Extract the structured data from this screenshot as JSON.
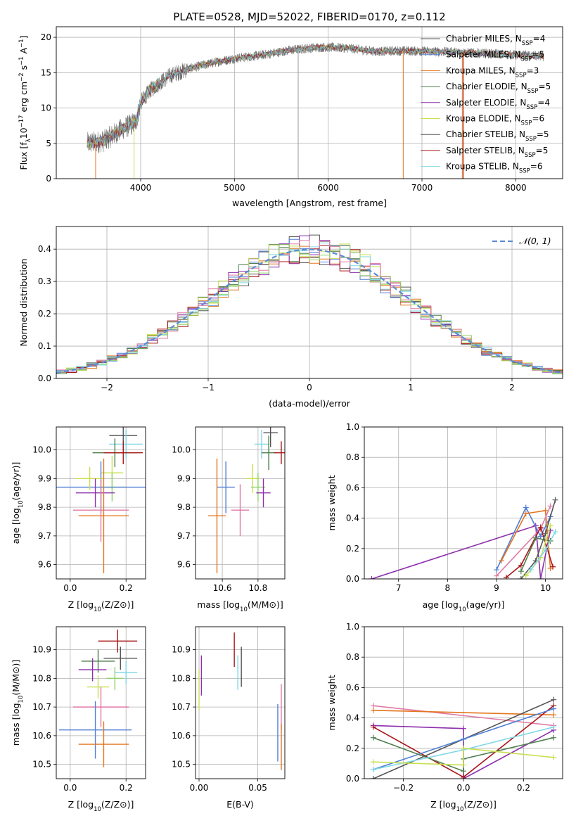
{
  "title": "PLATE=0528, MJD=52022, FIBERID=0170, z=0.112",
  "colors": {
    "blue": "#4f7fd6",
    "orange": "#e4751e",
    "green": "#4e7e4e",
    "purple": "#8d2fae",
    "lime": "#c8e052",
    "gray": "#555555",
    "red": "#a81618",
    "cyan": "#7fd8e6",
    "pink": "#e07aa6",
    "lightgreen": "#8ed36a",
    "darkpurple": "#5a2d8a",
    "olive": "#9aa34a"
  },
  "chart_data": [
    {
      "id": "spectrum",
      "type": "line",
      "xlabel": "wavelength [Angstrom, rest frame]",
      "ylabel_parts": [
        "Flux [f",
        "λ",
        "10",
        "−17",
        " erg cm",
        "−2",
        " s",
        "−1",
        " A",
        "−1",
        "]"
      ],
      "xlim": [
        3100,
        8500
      ],
      "ylim": [
        0,
        21.5
      ],
      "xticks": [
        4000,
        5000,
        6000,
        7000,
        8000
      ],
      "yticks": [
        0,
        5,
        10,
        15,
        20
      ],
      "continuum": {
        "x": [
          3430,
          3600,
          3800,
          3950,
          4000,
          4100,
          4300,
          4500,
          4800,
          5000,
          5300,
          5600,
          5900,
          6200,
          6500,
          6800,
          7100,
          7400,
          7700,
          8000,
          8300
        ],
        "y": [
          5.0,
          5.3,
          7.0,
          8.0,
          10.8,
          12.5,
          14.5,
          15.5,
          16.5,
          17.0,
          17.5,
          18.2,
          18.6,
          18.5,
          18.0,
          18.1,
          18.0,
          17.9,
          17.7,
          17.5,
          17.3
        ]
      },
      "legend_position": "right",
      "legend": [
        {
          "name": "Chabrier MILES",
          "nssp": "4",
          "color": "#555555"
        },
        {
          "name": "Salpeter MILES",
          "nssp": "5",
          "color": "#4f7fd6"
        },
        {
          "name": "Kroupa MILES",
          "nssp": "3",
          "color": "#e4751e"
        },
        {
          "name": "Chabrier ELODIE",
          "nssp": "5",
          "color": "#4e7e4e"
        },
        {
          "name": "Salpeter ELODIE",
          "nssp": "4",
          "color": "#8d2fae"
        },
        {
          "name": "Kroupa ELODIE",
          "nssp": "6",
          "color": "#c8e052"
        },
        {
          "name": "Chabrier STELIB",
          "nssp": "5",
          "color": "#555555"
        },
        {
          "name": "Salpeter STELIB",
          "nssp": "5",
          "color": "#a81618"
        },
        {
          "name": "Kroupa STELIB",
          "nssp": "6",
          "color": "#7fd8e6"
        }
      ]
    },
    {
      "id": "residuals",
      "type": "histogram",
      "xlabel": "(data-model)/error",
      "ylabel": "Normed distribution",
      "xlim": [
        -2.5,
        2.5
      ],
      "ylim": [
        0,
        0.47
      ],
      "xticks": [
        -2,
        -1,
        0,
        1,
        2
      ],
      "yticks": [
        0.0,
        0.1,
        0.2,
        0.3,
        0.4
      ],
      "bin_width": 0.1,
      "legend": "𝒩(0, 1)",
      "legend_position": "top-right",
      "gaussian": {
        "mean": 0,
        "sigma": 1,
        "color": "#5b8bd6"
      }
    },
    {
      "id": "age_vs_Z",
      "type": "errorbar",
      "xlabel": "Z [log10(Z/Z⊙)]",
      "ylabel": "age [log10(age/yr)]",
      "xlim": [
        -0.05,
        0.27
      ],
      "ylim": [
        9.55,
        10.08
      ],
      "xticks": [
        0.0,
        0.2
      ],
      "yticks": [
        9.6,
        9.7,
        9.8,
        9.9,
        10.0
      ],
      "points": [
        {
          "color": "#555555",
          "x": 0.19,
          "xerr": 0.05,
          "y": 10.05,
          "yerr": 0.05
        },
        {
          "color": "#7fd8e6",
          "x": 0.2,
          "xerr": 0.06,
          "y": 10.02,
          "yerr": 0.05
        },
        {
          "color": "#4e7e4e",
          "x": 0.16,
          "xerr": 0.08,
          "y": 9.99,
          "yerr": 0.05
        },
        {
          "color": "#a81618",
          "x": 0.19,
          "xerr": 0.07,
          "y": 9.99,
          "yerr": 0.04
        },
        {
          "color": "#c8e052",
          "x": 0.15,
          "xerr": 0.04,
          "y": 9.92,
          "yerr": 0.06
        },
        {
          "color": "#8ed36a",
          "x": 0.15,
          "xerr": 0.05,
          "y": 9.87,
          "yerr": 0.05
        },
        {
          "color": "#4f7fd6",
          "x": 0.11,
          "xerr": 0.18,
          "y": 9.87,
          "yerr": 0.09
        },
        {
          "color": "#c8e052",
          "x": 0.07,
          "xerr": 0.05,
          "y": 9.9,
          "yerr": 0.04
        },
        {
          "color": "#8d2fae",
          "x": 0.09,
          "xerr": 0.07,
          "y": 9.85,
          "yerr": 0.05
        },
        {
          "color": "#e07aa6",
          "x": 0.11,
          "xerr": 0.1,
          "y": 9.79,
          "yerr": 0.11
        },
        {
          "color": "#e4751e",
          "x": 0.12,
          "xerr": 0.09,
          "y": 9.77,
          "yerr": 0.2
        }
      ]
    },
    {
      "id": "age_vs_mass",
      "type": "errorbar",
      "xlabel": "mass [log10(M/M⊙)]",
      "ylabel": "",
      "xlim": [
        10.45,
        10.95
      ],
      "ylim": [
        9.55,
        10.08
      ],
      "xticks": [
        10.6,
        10.8
      ],
      "yticks": [
        9.6,
        9.7,
        9.8,
        9.9,
        10.0
      ],
      "points": [
        {
          "color": "#555555",
          "x": 10.87,
          "xerr": 0.04,
          "y": 10.06,
          "yerr": 0.05
        },
        {
          "color": "#7fd8e6",
          "x": 10.82,
          "xerr": 0.04,
          "y": 10.02,
          "yerr": 0.05
        },
        {
          "color": "#4e7e4e",
          "x": 10.86,
          "xerr": 0.04,
          "y": 9.99,
          "yerr": 0.06
        },
        {
          "color": "#a81618",
          "x": 10.93,
          "xerr": 0.04,
          "y": 9.99,
          "yerr": 0.04
        },
        {
          "color": "#c8e052",
          "x": 10.77,
          "xerr": 0.04,
          "y": 9.9,
          "yerr": 0.05
        },
        {
          "color": "#8ed36a",
          "x": 10.8,
          "xerr": 0.04,
          "y": 9.87,
          "yerr": 0.05
        },
        {
          "color": "#4f7fd6",
          "x": 10.62,
          "xerr": 0.05,
          "y": 9.87,
          "yerr": 0.09
        },
        {
          "color": "#8d2fae",
          "x": 10.83,
          "xerr": 0.04,
          "y": 9.85,
          "yerr": 0.05
        },
        {
          "color": "#e07aa6",
          "x": 10.7,
          "xerr": 0.05,
          "y": 9.79,
          "yerr": 0.09
        },
        {
          "color": "#e4751e",
          "x": 10.57,
          "xerr": 0.05,
          "y": 9.77,
          "yerr": 0.2
        }
      ]
    },
    {
      "id": "weight_vs_age",
      "type": "line",
      "xlabel": "age [log10(age/yr)]",
      "ylabel": "mass weight",
      "xlim": [
        6.3,
        10.35
      ],
      "ylim": [
        0,
        1
      ],
      "xticks": [
        7,
        8,
        9,
        10
      ],
      "yticks": [
        0.0,
        0.2,
        0.4,
        0.6,
        0.8,
        1.0
      ],
      "series": [
        {
          "color": "#8d2fae",
          "x": [
            6.45,
            9.8,
            9.9,
            10.1
          ],
          "y": [
            0.0,
            0.35,
            0.0,
            0.32
          ]
        },
        {
          "color": "#4f7fd6",
          "x": [
            9.0,
            9.6,
            9.9,
            10.1
          ],
          "y": [
            0.06,
            0.47,
            0.28,
            0.41
          ]
        },
        {
          "color": "#e4751e",
          "x": [
            9.1,
            9.6,
            10.0,
            10.1
          ],
          "y": [
            0.12,
            0.43,
            0.45,
            0.07
          ]
        },
        {
          "color": "#e07aa6",
          "x": [
            9.0,
            9.9,
            10.1
          ],
          "y": [
            0.02,
            0.33,
            0.48
          ]
        },
        {
          "color": "#a81618",
          "x": [
            9.2,
            9.5,
            9.9,
            10.15
          ],
          "y": [
            0.01,
            0.09,
            0.34,
            0.08
          ]
        },
        {
          "color": "#555555",
          "x": [
            9.5,
            9.8,
            10.0,
            10.2
          ],
          "y": [
            0.0,
            0.12,
            0.3,
            0.52
          ]
        },
        {
          "color": "#4e7e4e",
          "x": [
            9.5,
            9.8,
            10.1
          ],
          "y": [
            0.05,
            0.27,
            0.25
          ]
        },
        {
          "color": "#c8e052",
          "x": [
            9.6,
            9.9,
            10.1
          ],
          "y": [
            0.02,
            0.14,
            0.35
          ]
        },
        {
          "color": "#7fd8e6",
          "x": [
            9.7,
            10.0,
            10.2
          ],
          "y": [
            0.06,
            0.19,
            0.31
          ]
        }
      ]
    },
    {
      "id": "mass_vs_Z",
      "type": "errorbar",
      "xlabel": "Z [log10(Z/Z⊙)]",
      "ylabel": "mass [log10(M/M⊙)]",
      "xlim": [
        -0.05,
        0.27
      ],
      "ylim": [
        10.45,
        10.98
      ],
      "xticks": [
        0.0,
        0.2
      ],
      "yticks": [
        10.5,
        10.6,
        10.7,
        10.8,
        10.9
      ],
      "points": [
        {
          "color": "#a81618",
          "x": 0.17,
          "xerr": 0.07,
          "y": 10.93,
          "yerr": 0.04
        },
        {
          "color": "#555555",
          "x": 0.18,
          "xerr": 0.06,
          "y": 10.87,
          "yerr": 0.04
        },
        {
          "color": "#4e7e4e",
          "x": 0.1,
          "xerr": 0.06,
          "y": 10.86,
          "yerr": 0.04
        },
        {
          "color": "#8d2fae",
          "x": 0.08,
          "xerr": 0.05,
          "y": 10.83,
          "yerr": 0.04
        },
        {
          "color": "#7fd8e6",
          "x": 0.2,
          "xerr": 0.04,
          "y": 10.82,
          "yerr": 0.04
        },
        {
          "color": "#8ed36a",
          "x": 0.16,
          "xerr": 0.03,
          "y": 10.8,
          "yerr": 0.04
        },
        {
          "color": "#c8e052",
          "x": 0.1,
          "xerr": 0.04,
          "y": 10.77,
          "yerr": 0.04
        },
        {
          "color": "#e07aa6",
          "x": 0.11,
          "xerr": 0.1,
          "y": 10.7,
          "yerr": 0.07
        },
        {
          "color": "#4f7fd6",
          "x": 0.09,
          "xerr": 0.13,
          "y": 10.62,
          "yerr": 0.1
        },
        {
          "color": "#e4751e",
          "x": 0.12,
          "xerr": 0.09,
          "y": 10.57,
          "yerr": 0.08
        }
      ]
    },
    {
      "id": "mass_vs_ebv",
      "type": "errorbar",
      "xlabel": "E(B-V)",
      "ylabel": "",
      "xlim": [
        -0.003,
        0.073
      ],
      "ylim": [
        10.45,
        10.98
      ],
      "xticks": [
        0.0,
        0.05
      ],
      "yticks": [
        10.5,
        10.6,
        10.7,
        10.8,
        10.9
      ],
      "points": [
        {
          "color": "#a81618",
          "x": 0.03,
          "xerr": 0,
          "y": 10.9,
          "yerr": 0.06
        },
        {
          "color": "#555555",
          "x": 0.036,
          "xerr": 0,
          "y": 10.84,
          "yerr": 0.07
        },
        {
          "color": "#7fd8e6",
          "x": 0.033,
          "xerr": 0,
          "y": 10.82,
          "yerr": 0.06
        },
        {
          "color": "#8d2fae",
          "x": 0.002,
          "xerr": 0,
          "y": 10.81,
          "yerr": 0.07
        },
        {
          "color": "#c8e052",
          "x": 0.0,
          "xerr": 0,
          "y": 10.76,
          "yerr": 0.07
        },
        {
          "color": "#e07aa6",
          "x": 0.07,
          "xerr": 0,
          "y": 10.7,
          "yerr": 0.08
        },
        {
          "color": "#4f7fd6",
          "x": 0.067,
          "xerr": 0,
          "y": 10.61,
          "yerr": 0.1
        },
        {
          "color": "#e4751e",
          "x": 0.07,
          "xerr": 0,
          "y": 10.56,
          "yerr": 0.08
        }
      ]
    },
    {
      "id": "weight_vs_Z",
      "type": "line",
      "xlabel": "Z [log10(Z/Z⊙)]",
      "ylabel": "mass weight",
      "xlim": [
        -0.33,
        0.33
      ],
      "ylim": [
        0,
        1
      ],
      "xticks": [
        -0.2,
        0.0,
        0.2
      ],
      "yticks": [
        0.0,
        0.2,
        0.4,
        0.6,
        0.8,
        1.0
      ],
      "series": [
        {
          "color": "#e07aa6",
          "x": [
            -0.3,
            0.3
          ],
          "y": [
            0.48,
            0.35
          ]
        },
        {
          "color": "#e4751e",
          "x": [
            -0.3,
            0.3
          ],
          "y": [
            0.45,
            0.42
          ]
        },
        {
          "color": "#8d2fae",
          "x": [
            -0.3,
            0.0,
            0.0,
            0.3
          ],
          "y": [
            0.35,
            0.33,
            0.0,
            0.32
          ]
        },
        {
          "color": "#a81618",
          "x": [
            -0.3,
            0.0,
            0.3
          ],
          "y": [
            0.34,
            0.01,
            0.48
          ]
        },
        {
          "color": "#555555",
          "x": [
            -0.3,
            0.0,
            0.3
          ],
          "y": [
            0.0,
            0.26,
            0.52
          ]
        },
        {
          "color": "#4f7fd6",
          "x": [
            -0.3,
            0.0,
            0.3
          ],
          "y": [
            0.06,
            0.26,
            0.46
          ]
        },
        {
          "color": "#4e7e4e",
          "x": [
            -0.3,
            0.0,
            0.0,
            0.3
          ],
          "y": [
            0.27,
            0.05,
            0.13,
            0.27
          ]
        },
        {
          "color": "#7fd8e6",
          "x": [
            -0.3,
            0.0,
            0.3
          ],
          "y": [
            0.06,
            0.19,
            0.34
          ]
        },
        {
          "color": "#c8e052",
          "x": [
            -0.3,
            0.0,
            0.0,
            0.3
          ],
          "y": [
            0.11,
            0.09,
            0.2,
            0.14
          ]
        }
      ]
    }
  ]
}
